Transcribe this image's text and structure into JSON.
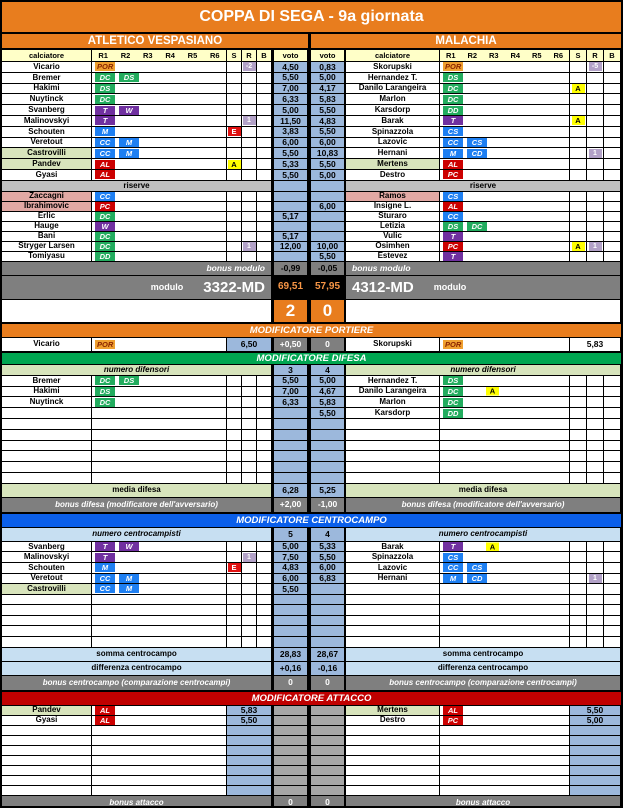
{
  "title": "COPPA DI SEGA - 9a giornata",
  "teams": {
    "home": "ATLETICO VESPASIANO",
    "away": "MALACHIA"
  },
  "columns": {
    "player": "calciatore",
    "roles": [
      "R1",
      "R2",
      "R3",
      "R4",
      "R5",
      "R6"
    ],
    "s": "S",
    "r": "R",
    "b": "B",
    "voto": "voto"
  },
  "score": {
    "home": "2",
    "away": "0"
  },
  "riserve_label": "riserve",
  "bonus_modulo": {
    "label": "bonus modulo",
    "home": "-0,99",
    "away": "-0,05"
  },
  "modulo": {
    "label": "modulo",
    "home_name": "3322-MD",
    "away_name": "4312-MD",
    "home_total": "69,51",
    "away_total": "57,95"
  },
  "lineup": {
    "home": [
      {
        "name": "Vicario",
        "roles": [
          "POR"
        ],
        "r": "-2",
        "voto": "4,50"
      },
      {
        "name": "Bremer",
        "roles": [
          "DC",
          "DS"
        ],
        "voto": "5,50"
      },
      {
        "name": "Hakimi",
        "roles": [
          "DS"
        ],
        "voto": "7,00"
      },
      {
        "name": "Nuytinck",
        "roles": [
          "DC"
        ],
        "voto": "6,33"
      },
      {
        "name": "Svanberg",
        "roles": [
          "T",
          "W"
        ],
        "voto": "5,00"
      },
      {
        "name": "Malinovskyi",
        "roles": [
          "T"
        ],
        "r": "1",
        "voto": "11,50"
      },
      {
        "name": "Schouten",
        "roles": [
          "M"
        ],
        "s": "E",
        "voto": "3,83"
      },
      {
        "name": "Veretout",
        "roles": [
          "CC",
          "M"
        ],
        "voto": "6,00"
      },
      {
        "name": "Castrovilli",
        "roles": [
          "CC",
          "M"
        ],
        "voto": "5,50",
        "hl": "green"
      },
      {
        "name": "Pandev",
        "roles": [
          "AL"
        ],
        "s": "A",
        "voto": "5,33",
        "hl": "green"
      },
      {
        "name": "Gyasi",
        "roles": [
          "AL"
        ],
        "voto": "5,50"
      }
    ],
    "away": [
      {
        "name": "Skorupski",
        "roles": [
          "POR"
        ],
        "r": "-5",
        "voto": "0,83"
      },
      {
        "name": "Hernandez T.",
        "roles": [
          "DS"
        ],
        "voto": "5,00"
      },
      {
        "name": "Danilo Larangeira",
        "roles": [
          "DC"
        ],
        "s": "A",
        "voto": "4,17"
      },
      {
        "name": "Marlon",
        "roles": [
          "DC"
        ],
        "voto": "5,83"
      },
      {
        "name": "Karsdorp",
        "roles": [
          "DD"
        ],
        "voto": "5,50"
      },
      {
        "name": "Barak",
        "roles": [
          "T"
        ],
        "s": "A",
        "voto": "4,83"
      },
      {
        "name": "Spinazzola",
        "roles": [
          "CS"
        ],
        "voto": "5,50"
      },
      {
        "name": "Lazovic",
        "roles": [
          "CC",
          "CS"
        ],
        "voto": "6,00"
      },
      {
        "name": "Hernani",
        "roles": [
          "M",
          "CD"
        ],
        "r": "1",
        "voto": "10,83"
      },
      {
        "name": "Mertens",
        "roles": [
          "AL"
        ],
        "voto": "5,50",
        "hl": "green"
      },
      {
        "name": "Destro",
        "roles": [
          "PC"
        ],
        "voto": "5,00"
      }
    ]
  },
  "reserves": {
    "home": [
      {
        "name": "Zaccagni",
        "roles": [
          "CC"
        ],
        "hl": "pink"
      },
      {
        "name": "Ibrahimovic",
        "roles": [
          "PC"
        ],
        "hl": "pink"
      },
      {
        "name": "Erlic",
        "roles": [
          "DC"
        ],
        "voto": "5,17"
      },
      {
        "name": "Hauge",
        "roles": [
          "W"
        ]
      },
      {
        "name": "Bani",
        "roles": [
          "DC"
        ],
        "voto": "5,17"
      },
      {
        "name": "Stryger Larsen",
        "roles": [
          "DC"
        ],
        "r": "1",
        "voto": "12,00"
      },
      {
        "name": "Tomiyasu",
        "roles": [
          "DD"
        ]
      }
    ],
    "away": [
      {
        "name": "Ramos",
        "roles": [
          "CS"
        ],
        "hl": "pink"
      },
      {
        "name": "Insigne L.",
        "roles": [
          "AL"
        ],
        "voto": "6,00"
      },
      {
        "name": "Sturaro",
        "roles": [
          "CC"
        ]
      },
      {
        "name": "Letizia",
        "roles": [
          "DS",
          "DC"
        ]
      },
      {
        "name": "Vulic",
        "roles": [
          "T"
        ]
      },
      {
        "name": "Osimhen",
        "roles": [
          "PC"
        ],
        "s": "A",
        "r": "1",
        "voto": "10,00"
      },
      {
        "name": "Estevez",
        "roles": [
          "T"
        ],
        "voto": "5,50"
      }
    ]
  },
  "portiere": {
    "banner": "MODIFICATORE PORTIERE",
    "home_name": "Vicario",
    "home_role": "POR",
    "home_value": "6,50",
    "bonus_home": "+0,50",
    "bonus_away": "0",
    "away_name": "Skorupski",
    "away_role": "POR",
    "away_value": "5,83"
  },
  "difesa": {
    "banner": "MODIFICATORE DIFESA",
    "header": "numero difensori",
    "count_home": "3",
    "count_away": "4",
    "rows": {
      "home": [
        {
          "name": "Bremer",
          "roles": [
            "DC",
            "DS"
          ],
          "voto": "5,50"
        },
        {
          "name": "Hakimi",
          "roles": [
            "DS"
          ],
          "voto": "7,00"
        },
        {
          "name": "Nuytinck",
          "roles": [
            "DC"
          ],
          "voto": "6,33"
        },
        {},
        {},
        {},
        {},
        {},
        {},
        {}
      ],
      "away": [
        {
          "name": "Hernandez T.",
          "roles": [
            "DS"
          ],
          "voto": "5,00"
        },
        {
          "name": "Danilo Larangeira",
          "roles": [
            "DC"
          ],
          "s_mid": "A",
          "voto": "4,67"
        },
        {
          "name": "Marlon",
          "roles": [
            "DC"
          ],
          "voto": "5,83"
        },
        {
          "name": "Karsdorp",
          "roles": [
            "DD"
          ],
          "voto": "5,50"
        },
        {},
        {},
        {},
        {},
        {},
        {}
      ]
    },
    "media": {
      "label": "media difesa",
      "home": "6,28",
      "away": "5,25"
    },
    "bonus": {
      "label": "bonus difesa (modificatore dell'avversario)",
      "home": "+2,00",
      "away": "-1,00"
    }
  },
  "centrocampo": {
    "banner": "MODIFICATORE CENTROCAMPO",
    "header": "numero centrocampisti",
    "count_home": "5",
    "count_away": "4",
    "rows": {
      "home": [
        {
          "name": "Svanberg",
          "roles": [
            "T",
            "W"
          ],
          "voto": "5,00"
        },
        {
          "name": "Malinovskyi",
          "roles": [
            "T"
          ],
          "r": "1",
          "voto": "7,50"
        },
        {
          "name": "Schouten",
          "roles": [
            "M"
          ],
          "s": "E",
          "voto": "4,83"
        },
        {
          "name": "Veretout",
          "roles": [
            "CC",
            "M"
          ],
          "voto": "6,00"
        },
        {
          "name": "Castrovilli",
          "roles": [
            "CC",
            "M"
          ],
          "voto": "5,50",
          "hl": "green"
        },
        {},
        {},
        {},
        {},
        {}
      ],
      "away": [
        {
          "name": "Barak",
          "roles": [
            "T"
          ],
          "s_mid": "A",
          "voto": "5,33"
        },
        {
          "name": "Spinazzola",
          "roles": [
            "CS"
          ],
          "voto": "5,50"
        },
        {
          "name": "Lazovic",
          "roles": [
            "CC",
            "CS"
          ],
          "voto": "6,00"
        },
        {
          "name": "Hernani",
          "roles": [
            "M",
            "CD"
          ],
          "r": "1",
          "voto": "6,83"
        },
        {},
        {},
        {},
        {},
        {},
        {}
      ]
    },
    "somma": {
      "label": "somma centrocampo",
      "home": "28,83",
      "away": "28,67"
    },
    "differenza": {
      "label": "differenza centrocampo",
      "home": "+0,16",
      "away": "-0,16"
    },
    "bonus": {
      "label": "bonus centrocampo (comparazione centrocampi)",
      "home": "0",
      "away": "0"
    }
  },
  "attacco": {
    "banner": "MODIFICATORE ATTACCO",
    "rows": {
      "home": [
        {
          "name": "Pandev",
          "roles": [
            "AL"
          ],
          "voto": "5,83",
          "hl": "green"
        },
        {
          "name": "Gyasi",
          "roles": [
            "AL"
          ],
          "voto": "5,50"
        },
        {},
        {},
        {},
        {},
        {},
        {},
        {}
      ],
      "away": [
        {
          "name": "Mertens",
          "roles": [
            "AL"
          ],
          "voto": "5,50",
          "hl": "green"
        },
        {
          "name": "Destro",
          "roles": [
            "PC"
          ],
          "voto": "5,00"
        },
        {},
        {},
        {},
        {},
        {},
        {},
        {}
      ]
    },
    "bonus": {
      "label": "bonus attacco",
      "home": "0",
      "away": "0"
    }
  },
  "colors": {
    "accent_orange": "#E87D1E",
    "banner_green": "#00A651",
    "banner_blue": "#0B5FEA",
    "banner_red": "#C00000",
    "value_blue": "#9CB8DC",
    "highlight_green": "#D8E4BC",
    "highlight_pink": "#E2A9A4",
    "badge_por": "#EFA030",
    "badge_def": "#22AC5E",
    "badge_mid": "#1E7FF2",
    "badge_tre": "#7030A0",
    "badge_att": "#CC0000",
    "badge_yellow": "#FFFF00",
    "badge_red": "#E01010",
    "badge_lavender": "#B2A1C7",
    "total_orange": "#F79646"
  }
}
